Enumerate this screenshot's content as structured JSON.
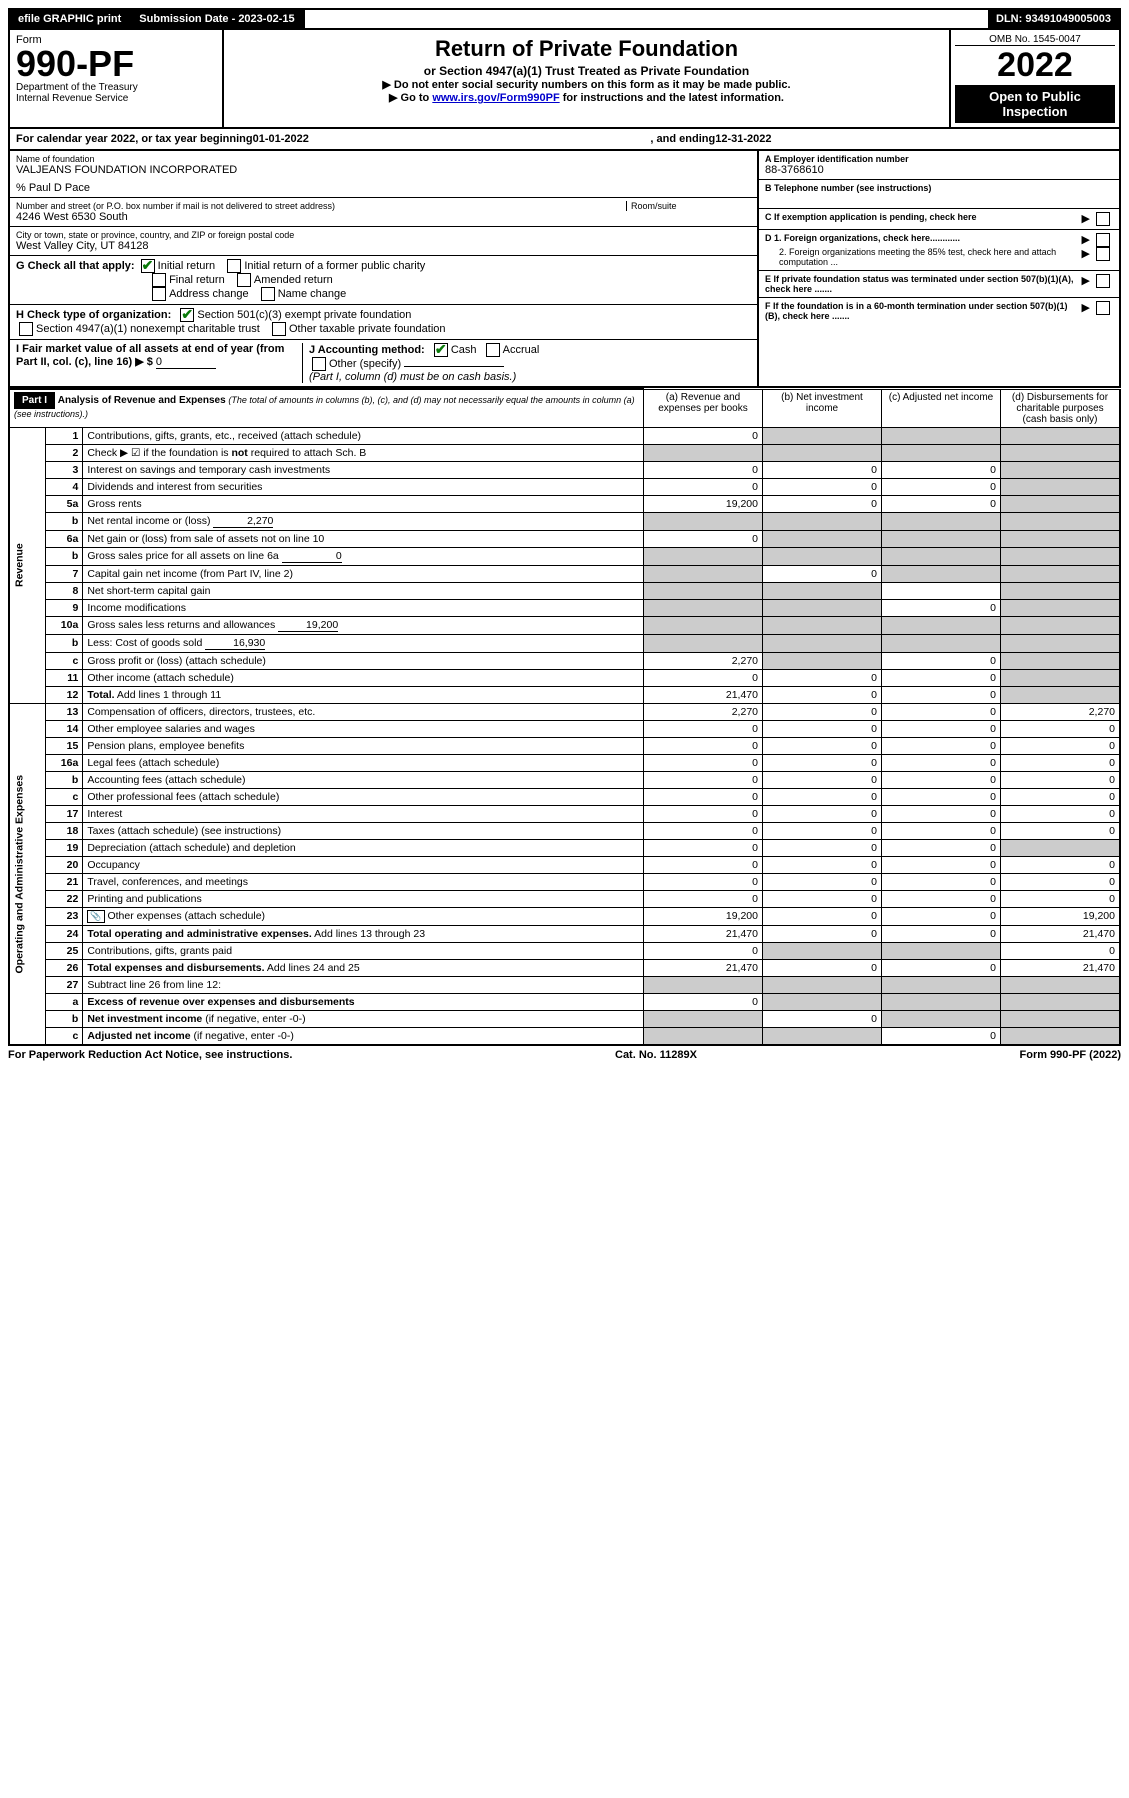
{
  "top": {
    "efile": "efile GRAPHIC print",
    "sub_label": "Submission Date - 2023-02-15",
    "dln": "DLN: 93491049005003"
  },
  "header": {
    "form_word": "Form",
    "form_num": "990-PF",
    "dept": "Department of the Treasury",
    "irs": "Internal Revenue Service",
    "title": "Return of Private Foundation",
    "subtitle": "or Section 4947(a)(1) Trust Treated as Private Foundation",
    "note1": "▶ Do not enter social security numbers on this form as it may be made public.",
    "note2_pre": "▶ Go to ",
    "note2_link": "www.irs.gov/Form990PF",
    "note2_post": " for instructions and the latest information.",
    "omb": "OMB No. 1545-0047",
    "year": "2022",
    "open": "Open to Public Inspection"
  },
  "calyear": {
    "text_a": "For calendar year 2022, or tax year beginning ",
    "begin": "01-01-2022",
    "text_b": ", and ending ",
    "end": "12-31-2022"
  },
  "id": {
    "name_label": "Name of foundation",
    "name": "VALJEANS FOUNDATION INCORPORATED",
    "care_of": "% Paul D Pace",
    "street_label": "Number and street (or P.O. box number if mail is not delivered to street address)",
    "street": "4246 West 6530 South",
    "room_label": "Room/suite",
    "city_label": "City or town, state or province, country, and ZIP or foreign postal code",
    "city": "West Valley City, UT  84128",
    "a_label": "A Employer identification number",
    "a_val": "88-3768610",
    "b_label": "B Telephone number (see instructions)",
    "c_label": "C If exemption application is pending, check here",
    "d1_label": "D 1. Foreign organizations, check here............",
    "d2_label": "2. Foreign organizations meeting the 85% test, check here and attach computation ...",
    "e_label": "E  If private foundation status was terminated under section 507(b)(1)(A), check here .......",
    "f_label": "F  If the foundation is in a 60-month termination under section 507(b)(1)(B), check here .......",
    "g_label": "G Check all that apply:",
    "g_opts": [
      "Initial return",
      "Initial return of a former public charity",
      "Final return",
      "Amended return",
      "Address change",
      "Name change"
    ],
    "h_label": "H Check type of organization:",
    "h_opts": [
      "Section 501(c)(3) exempt private foundation",
      "Section 4947(a)(1) nonexempt charitable trust",
      "Other taxable private foundation"
    ],
    "i_label": "I Fair market value of all assets at end of year (from Part II, col. (c), line 16) ▶ $",
    "i_val": "0",
    "j_label": "J Accounting method:",
    "j_opts": [
      "Cash",
      "Accrual"
    ],
    "j_other": "Other (specify)",
    "j_note": "(Part I, column (d) must be on cash basis.)"
  },
  "part1": {
    "label": "Part I",
    "title": "Analysis of Revenue and Expenses",
    "title_note": "(The total of amounts in columns (b), (c), and (d) may not necessarily equal the amounts in column (a) (see instructions).)",
    "cols": {
      "a": "(a)  Revenue and expenses per books",
      "b": "(b)  Net investment income",
      "c": "(c)  Adjusted net income",
      "d": "(d)  Disbursements for charitable purposes (cash basis only)"
    },
    "side_rev": "Revenue",
    "side_exp": "Operating and Administrative Expenses"
  },
  "rows": [
    {
      "n": "1",
      "desc": "Contributions, gifts, grants, etc., received (attach schedule)",
      "a": "0",
      "b": "",
      "c": "",
      "d": "",
      "b_sh": true,
      "c_sh": true,
      "d_sh": true
    },
    {
      "n": "2",
      "desc": "Check ▶ ☑ if the foundation is <b>not</b> required to attach Sch. B",
      "a": "",
      "b": "",
      "c": "",
      "d": "",
      "all_sh": true,
      "checked": true
    },
    {
      "n": "3",
      "desc": "Interest on savings and temporary cash investments",
      "a": "0",
      "b": "0",
      "c": "0",
      "d": "",
      "d_sh": true
    },
    {
      "n": "4",
      "desc": "Dividends and interest from securities",
      "a": "0",
      "b": "0",
      "c": "0",
      "d": "",
      "d_sh": true
    },
    {
      "n": "5a",
      "desc": "Gross rents",
      "a": "19,200",
      "b": "0",
      "c": "0",
      "d": "",
      "d_sh": true
    },
    {
      "n": "b",
      "desc": "Net rental income or (loss)",
      "inline_val": "2,270",
      "a": "",
      "b": "",
      "c": "",
      "d": "",
      "all_sh": true
    },
    {
      "n": "6a",
      "desc": "Net gain or (loss) from sale of assets not on line 10",
      "a": "0",
      "b": "",
      "c": "",
      "d": "",
      "b_sh": true,
      "c_sh": true,
      "d_sh": true
    },
    {
      "n": "b",
      "desc": "Gross sales price for all assets on line 6a",
      "inline_val": "0",
      "a": "",
      "b": "",
      "c": "",
      "d": "",
      "all_sh": true
    },
    {
      "n": "7",
      "desc": "Capital gain net income (from Part IV, line 2)",
      "a": "",
      "b": "0",
      "c": "",
      "d": "",
      "a_sh": true,
      "c_sh": true,
      "d_sh": true
    },
    {
      "n": "8",
      "desc": "Net short-term capital gain",
      "a": "",
      "b": "",
      "c": "",
      "d": "",
      "a_sh": true,
      "b_sh": true,
      "d_sh": true
    },
    {
      "n": "9",
      "desc": "Income modifications",
      "a": "",
      "b": "",
      "c": "0",
      "d": "",
      "a_sh": true,
      "b_sh": true,
      "d_sh": true
    },
    {
      "n": "10a",
      "desc": "Gross sales less returns and allowances",
      "inline_val": "19,200",
      "a": "",
      "b": "",
      "c": "",
      "d": "",
      "all_sh": true
    },
    {
      "n": "b",
      "desc": "Less: Cost of goods sold",
      "inline_val": "16,930",
      "a": "",
      "b": "",
      "c": "",
      "d": "",
      "all_sh": true
    },
    {
      "n": "c",
      "desc": "Gross profit or (loss) (attach schedule)",
      "a": "2,270",
      "b": "",
      "c": "0",
      "d": "",
      "b_sh": true,
      "d_sh": true
    },
    {
      "n": "11",
      "desc": "Other income (attach schedule)",
      "a": "0",
      "b": "0",
      "c": "0",
      "d": "",
      "d_sh": true
    },
    {
      "n": "12",
      "desc": "<b>Total.</b> Add lines 1 through 11",
      "a": "21,470",
      "b": "0",
      "c": "0",
      "d": "",
      "d_sh": true,
      "bold": true
    },
    {
      "n": "13",
      "desc": "Compensation of officers, directors, trustees, etc.",
      "a": "2,270",
      "b": "0",
      "c": "0",
      "d": "2,270"
    },
    {
      "n": "14",
      "desc": "Other employee salaries and wages",
      "a": "0",
      "b": "0",
      "c": "0",
      "d": "0"
    },
    {
      "n": "15",
      "desc": "Pension plans, employee benefits",
      "a": "0",
      "b": "0",
      "c": "0",
      "d": "0"
    },
    {
      "n": "16a",
      "desc": "Legal fees (attach schedule)",
      "a": "0",
      "b": "0",
      "c": "0",
      "d": "0"
    },
    {
      "n": "b",
      "desc": "Accounting fees (attach schedule)",
      "a": "0",
      "b": "0",
      "c": "0",
      "d": "0"
    },
    {
      "n": "c",
      "desc": "Other professional fees (attach schedule)",
      "a": "0",
      "b": "0",
      "c": "0",
      "d": "0"
    },
    {
      "n": "17",
      "desc": "Interest",
      "a": "0",
      "b": "0",
      "c": "0",
      "d": "0"
    },
    {
      "n": "18",
      "desc": "Taxes (attach schedule) (see instructions)",
      "a": "0",
      "b": "0",
      "c": "0",
      "d": "0"
    },
    {
      "n": "19",
      "desc": "Depreciation (attach schedule) and depletion",
      "a": "0",
      "b": "0",
      "c": "0",
      "d": "",
      "d_sh": true
    },
    {
      "n": "20",
      "desc": "Occupancy",
      "a": "0",
      "b": "0",
      "c": "0",
      "d": "0"
    },
    {
      "n": "21",
      "desc": "Travel, conferences, and meetings",
      "a": "0",
      "b": "0",
      "c": "0",
      "d": "0"
    },
    {
      "n": "22",
      "desc": "Printing and publications",
      "a": "0",
      "b": "0",
      "c": "0",
      "d": "0"
    },
    {
      "n": "23",
      "desc": "Other expenses (attach schedule)",
      "a": "19,200",
      "b": "0",
      "c": "0",
      "d": "19,200",
      "icon": true
    },
    {
      "n": "24",
      "desc": "<b>Total operating and administrative expenses.</b> Add lines 13 through 23",
      "a": "21,470",
      "b": "0",
      "c": "0",
      "d": "21,470",
      "bold": true
    },
    {
      "n": "25",
      "desc": "Contributions, gifts, grants paid",
      "a": "0",
      "b": "",
      "c": "",
      "d": "0",
      "b_sh": true,
      "c_sh": true
    },
    {
      "n": "26",
      "desc": "<b>Total expenses and disbursements.</b> Add lines 24 and 25",
      "a": "21,470",
      "b": "0",
      "c": "0",
      "d": "21,470",
      "bold": true
    },
    {
      "n": "27",
      "desc": "Subtract line 26 from line 12:",
      "a": "",
      "b": "",
      "c": "",
      "d": "",
      "all_sh": true
    },
    {
      "n": "a",
      "desc": "<b>Excess of revenue over expenses and disbursements</b>",
      "a": "0",
      "b": "",
      "c": "",
      "d": "",
      "b_sh": true,
      "c_sh": true,
      "d_sh": true
    },
    {
      "n": "b",
      "desc": "<b>Net investment income</b> (if negative, enter -0-)",
      "a": "",
      "b": "0",
      "c": "",
      "d": "",
      "a_sh": true,
      "c_sh": true,
      "d_sh": true
    },
    {
      "n": "c",
      "desc": "<b>Adjusted net income</b> (if negative, enter -0-)",
      "a": "",
      "b": "",
      "c": "0",
      "d": "",
      "a_sh": true,
      "b_sh": true,
      "d_sh": true
    }
  ],
  "footer": {
    "left": "For Paperwork Reduction Act Notice, see instructions.",
    "mid": "Cat. No. 11289X",
    "right": "Form 990-PF (2022)"
  }
}
